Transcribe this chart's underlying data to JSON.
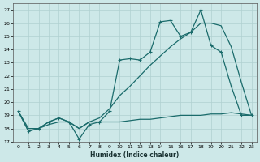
{
  "xlabel": "Humidex (Indice chaleur)",
  "bg_color": "#cde8e8",
  "grid_color": "#b0d0d0",
  "line_color": "#1a6b6b",
  "xlim": [
    -0.5,
    23.5
  ],
  "ylim": [
    17,
    27.5
  ],
  "yticks": [
    17,
    18,
    19,
    20,
    21,
    22,
    23,
    24,
    25,
    26,
    27
  ],
  "xticks": [
    0,
    1,
    2,
    3,
    4,
    5,
    6,
    7,
    8,
    9,
    10,
    11,
    12,
    13,
    14,
    15,
    16,
    17,
    18,
    19,
    20,
    21,
    22,
    23
  ],
  "line_markers": [
    19.3,
    17.8,
    18.0,
    18.5,
    18.8,
    18.5,
    17.2,
    18.3,
    18.5,
    19.3,
    23.2,
    23.3,
    23.2,
    23.8,
    26.1,
    26.2,
    25.0,
    25.3,
    27.0,
    24.3,
    23.8,
    21.2,
    19.0,
    19.0
  ],
  "line_smooth": [
    19.3,
    17.8,
    18.0,
    18.5,
    18.8,
    18.5,
    18.0,
    18.5,
    18.8,
    19.5,
    20.5,
    21.2,
    22.0,
    22.8,
    23.5,
    24.2,
    24.8,
    25.3,
    26.0,
    26.0,
    25.8,
    24.2,
    21.5,
    19.0
  ],
  "line_flat": [
    19.3,
    18.0,
    18.0,
    18.3,
    18.5,
    18.5,
    18.0,
    18.5,
    18.5,
    18.5,
    18.5,
    18.6,
    18.7,
    18.7,
    18.8,
    18.9,
    19.0,
    19.0,
    19.0,
    19.1,
    19.1,
    19.2,
    19.1,
    19.0
  ]
}
